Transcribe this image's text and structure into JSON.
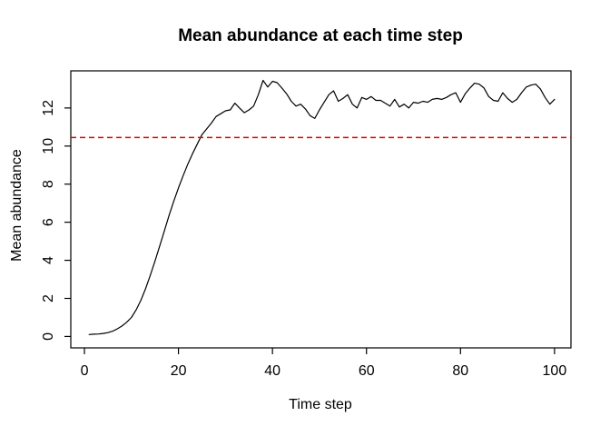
{
  "chart_data": {
    "type": "line",
    "title": "Mean abundance at each time step",
    "xlabel": "Time step",
    "ylabel": "Mean abundance",
    "x_ticks": [
      0,
      20,
      40,
      60,
      80,
      100
    ],
    "y_ticks": [
      0,
      2,
      4,
      6,
      8,
      10,
      12
    ],
    "xlim": [
      -2.9,
      103.5
    ],
    "ylim": [
      -0.6,
      13.95
    ],
    "grid": false,
    "legend": null,
    "x_range": [
      1,
      100
    ],
    "x_step": 1,
    "series": [
      {
        "name": "mean abundance",
        "color": "#000000",
        "style": "solid",
        "values": [
          0.1,
          0.12,
          0.13,
          0.16,
          0.2,
          0.28,
          0.4,
          0.55,
          0.75,
          1.0,
          1.4,
          1.9,
          2.5,
          3.2,
          3.95,
          4.75,
          5.55,
          6.35,
          7.1,
          7.8,
          8.45,
          9.05,
          9.6,
          10.1,
          10.6,
          10.9,
          11.2,
          11.55,
          11.7,
          11.85,
          11.9,
          12.25,
          12.0,
          11.75,
          11.9,
          12.1,
          12.7,
          13.45,
          13.1,
          13.4,
          13.33,
          13.05,
          12.75,
          12.35,
          12.1,
          12.2,
          11.95,
          11.6,
          11.45,
          11.9,
          12.3,
          12.7,
          12.9,
          12.35,
          12.5,
          12.7,
          12.2,
          12.0,
          12.55,
          12.45,
          12.6,
          12.4,
          12.4,
          12.25,
          12.1,
          12.45,
          12.05,
          12.2,
          12.0,
          12.3,
          12.25,
          12.35,
          12.3,
          12.45,
          12.5,
          12.45,
          12.55,
          12.7,
          12.8,
          12.3,
          12.75,
          13.05,
          13.3,
          13.25,
          13.05,
          12.6,
          12.4,
          12.35,
          12.8,
          12.5,
          12.3,
          12.45,
          12.8,
          13.1,
          13.2,
          13.25,
          13.0,
          12.55,
          12.2,
          12.45
        ]
      }
    ],
    "reference_line": {
      "orientation": "horizontal",
      "value": 10.45,
      "color": "#e60000",
      "style": "dashed"
    },
    "colors": {
      "axis": "#000000",
      "text": "#000000",
      "background": "#ffffff"
    }
  }
}
